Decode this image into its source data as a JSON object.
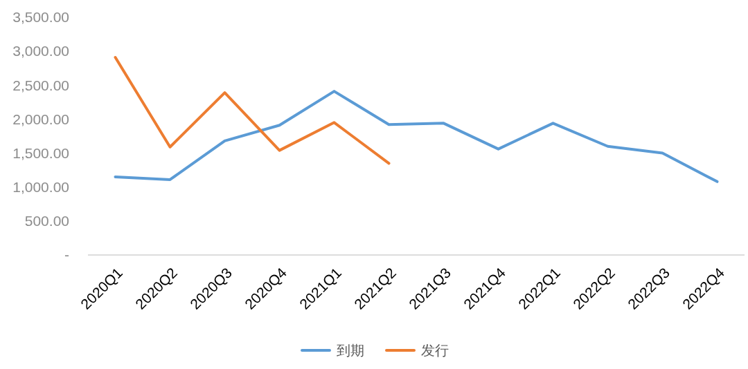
{
  "chart_data": {
    "type": "line",
    "categories": [
      "2020Q1",
      "2020Q2",
      "2020Q3",
      "2020Q4",
      "2021Q1",
      "2021Q2",
      "2021Q3",
      "2021Q4",
      "2022Q1",
      "2022Q2",
      "2022Q3",
      "2022Q4"
    ],
    "series": [
      {
        "name": "到期",
        "color": "#5b9bd5",
        "values": [
          1150,
          1110,
          1680,
          1910,
          2410,
          1920,
          1940,
          1560,
          1940,
          1600,
          1500,
          1080
        ]
      },
      {
        "name": "发行",
        "color": "#ed7d31",
        "values": [
          2910,
          1590,
          2390,
          1540,
          1950,
          1350,
          null,
          null,
          null,
          null,
          null,
          null
        ]
      }
    ],
    "ylim": [
      0,
      3500
    ],
    "yticks": [
      {
        "value": 0,
        "label": "-"
      },
      {
        "value": 500,
        "label": "500.00"
      },
      {
        "value": 1000,
        "label": "1,000.00"
      },
      {
        "value": 1500,
        "label": "1,500.00"
      },
      {
        "value": 2000,
        "label": "2,000.00"
      },
      {
        "value": 2500,
        "label": "2,500.00"
      },
      {
        "value": 3000,
        "label": "3,000.00"
      },
      {
        "value": 3500,
        "label": "3,500.00"
      }
    ],
    "grid": false,
    "legend": "bottom",
    "marker": "none",
    "line_style": "solid"
  }
}
